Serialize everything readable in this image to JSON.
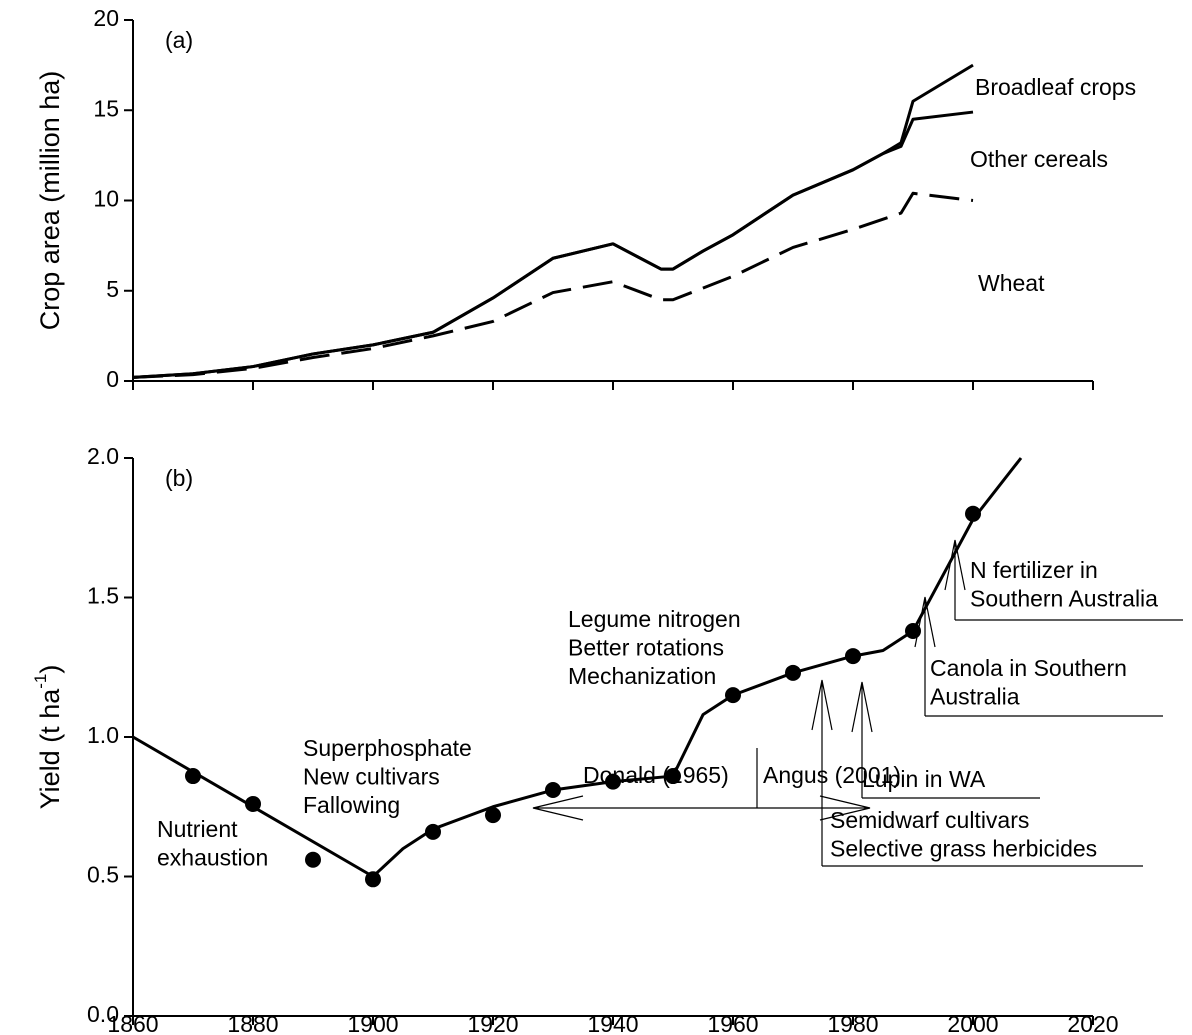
{
  "charts": [
    {
      "type": "line",
      "panel_label": "(a)",
      "ylabel": "Crop area (million ha)",
      "xlim": [
        1860,
        2020
      ],
      "xticks": [
        1860,
        1880,
        1900,
        1920,
        1940,
        1960,
        1980,
        2000,
        2020
      ],
      "tick_labels": false,
      "ylim": [
        0,
        20
      ],
      "yticks": [
        0,
        5,
        10,
        15,
        20
      ],
      "series": [
        {
          "name": "Broadleaf crops",
          "color": "#000000",
          "dash": false,
          "x": [
            1860,
            1870,
            1880,
            1890,
            1900,
            1910,
            1920,
            1930,
            1940,
            1948,
            1950,
            1955,
            1960,
            1970,
            1980,
            1985,
            1988,
            1990,
            2000
          ],
          "values": [
            0.2,
            0.4,
            0.8,
            1.5,
            2.0,
            2.7,
            4.6,
            6.8,
            7.6,
            6.2,
            6.2,
            7.2,
            8.1,
            10.3,
            11.7,
            12.6,
            13.2,
            15.5,
            17.5
          ]
        },
        {
          "name": "Other cereals",
          "color": "#000000",
          "dash": false,
          "x": [
            1860,
            1870,
            1880,
            1890,
            1900,
            1910,
            1920,
            1930,
            1940,
            1948,
            1950,
            1955,
            1960,
            1970,
            1980,
            1985,
            1988,
            1990,
            2000
          ],
          "values": [
            0.2,
            0.4,
            0.8,
            1.5,
            2.0,
            2.7,
            4.6,
            6.8,
            7.6,
            6.2,
            6.2,
            7.2,
            8.1,
            10.3,
            11.7,
            12.6,
            13.0,
            14.5,
            14.9
          ]
        },
        {
          "name": "Wheat",
          "color": "#000000",
          "dash": true,
          "x": [
            1860,
            1870,
            1880,
            1890,
            1900,
            1910,
            1920,
            1930,
            1940,
            1948,
            1950,
            1960,
            1970,
            1980,
            1988,
            1990,
            2000
          ],
          "values": [
            0.2,
            0.35,
            0.7,
            1.3,
            1.8,
            2.5,
            3.3,
            4.9,
            5.5,
            4.5,
            4.5,
            5.8,
            7.4,
            8.4,
            9.3,
            10.4,
            10.0
          ]
        }
      ]
    },
    {
      "type": "scatter",
      "panel_label": "(b)",
      "ylabel": {
        "text": "Yield (t ha",
        "sup": "-1",
        "end": ")"
      },
      "xlim": [
        1860,
        2020
      ],
      "xticks": [
        1860,
        1880,
        1900,
        1920,
        1940,
        1960,
        1980,
        2000,
        2020
      ],
      "tick_labels": true,
      "ylim": [
        0,
        2
      ],
      "yticks": [
        {
          "value": 0,
          "label": "0.0"
        },
        0.5,
        {
          "value": 1,
          "label": "1.0"
        },
        1.5,
        {
          "value": 2,
          "label": "2.0"
        }
      ],
      "points": {
        "x": [
          1870,
          1880,
          1890,
          1900,
          1910,
          1920,
          1930,
          1940,
          1950,
          1960,
          1970,
          1980,
          1990,
          2000
        ],
        "values": [
          0.86,
          0.76,
          0.56,
          0.49,
          0.66,
          0.72,
          0.81,
          0.84,
          0.86,
          1.15,
          1.23,
          1.29,
          1.38,
          1.8
        ],
        "color": "#000000"
      },
      "trend": {
        "x": [
          1860,
          1900,
          1905,
          1910,
          1920,
          1930,
          1940,
          1950,
          1955,
          1960,
          1970,
          1980,
          1985,
          1990,
          1995,
          2000,
          2008
        ],
        "values": [
          1.0,
          0.5,
          0.6,
          0.67,
          0.75,
          0.81,
          0.84,
          0.86,
          1.08,
          1.15,
          1.23,
          1.29,
          1.31,
          1.38,
          1.58,
          1.78,
          2.0
        ]
      },
      "annotations": [
        {
          "lines": [
            "Nutrient",
            "exhaustion"
          ]
        },
        {
          "lines": [
            "Superphosphate",
            "New cultivars",
            "Fallowing"
          ]
        },
        {
          "lines": [
            "Legume nitrogen",
            "Better rotations",
            "Mechanization"
          ]
        },
        {
          "lines": [
            "Semidwarf cultivars",
            "Selective grass herbicides"
          ]
        },
        {
          "lines": [
            "Lupin in WA"
          ]
        },
        {
          "lines": [
            "Canola in Southern",
            "Australia"
          ]
        },
        {
          "lines": [
            "N fertilizer in",
            "Southern Australia"
          ]
        },
        {
          "lines": [
            "Donald (1965)"
          ]
        },
        {
          "lines": [
            "Angus (2001)"
          ]
        }
      ]
    }
  ]
}
